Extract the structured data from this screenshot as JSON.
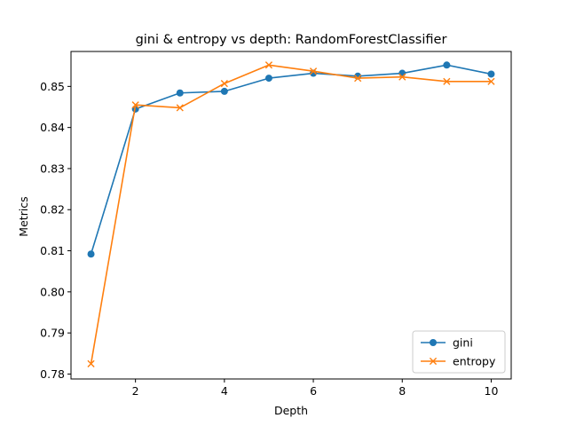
{
  "chart_data": {
    "type": "line",
    "title": "gini & entropy vs depth: RandomForestClassifier",
    "xlabel": "Depth",
    "ylabel": "Metrics",
    "x": [
      1,
      2,
      3,
      4,
      5,
      6,
      7,
      8,
      9,
      10
    ],
    "xticks": [
      2,
      4,
      6,
      8,
      10
    ],
    "yticks": [
      0.78,
      0.79,
      0.8,
      0.81,
      0.82,
      0.83,
      0.84,
      0.85
    ],
    "ytick_labels": [
      "0.78",
      "0.79",
      "0.80",
      "0.81",
      "0.82",
      "0.83",
      "0.84",
      "0.85"
    ],
    "xlim": [
      0.55,
      10.45
    ],
    "ylim": [
      0.7788,
      0.8585
    ],
    "grid": false,
    "legend_position": "lower right",
    "series": [
      {
        "name": "gini",
        "color": "#1f77b4",
        "marker": "circle",
        "values": [
          0.8092,
          0.8445,
          0.8484,
          0.8488,
          0.852,
          0.8532,
          0.8525,
          0.8532,
          0.8552,
          0.853
        ]
      },
      {
        "name": "entropy",
        "color": "#ff7f0e",
        "marker": "x",
        "values": [
          0.7825,
          0.8455,
          0.8448,
          0.8507,
          0.8552,
          0.8537,
          0.852,
          0.8523,
          0.8512,
          0.8512
        ]
      }
    ]
  }
}
